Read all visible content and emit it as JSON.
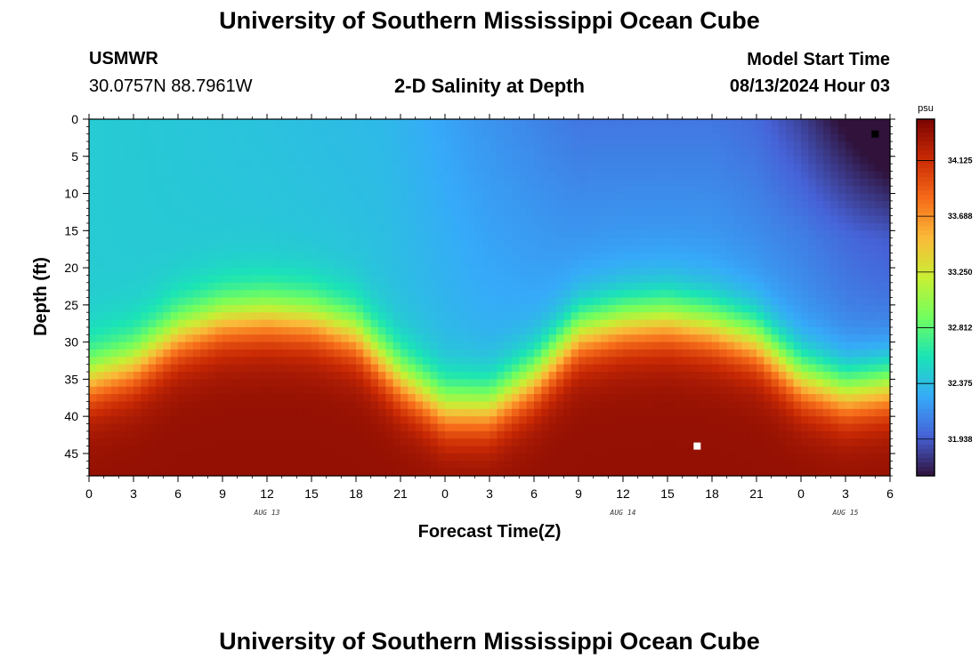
{
  "header": {
    "title": "University of Southern Mississippi Ocean Cube",
    "footer_title": "University of Southern Mississippi Ocean Cube",
    "station_name": "USMWR",
    "station_coords": "30.0757N  88.7961W",
    "plot_title": "2-D Salinity at Depth",
    "model_start_label": "Model Start Time",
    "model_start_value": "08/13/2024 Hour 03"
  },
  "chart_data": {
    "type": "heatmap",
    "title": "2-D Salinity at Depth",
    "xlabel": "Forecast Time(Z)",
    "ylabel": "Depth (ft)",
    "x_ticks": [
      "0",
      "3",
      "6",
      "9",
      "12",
      "15",
      "18",
      "21",
      "0",
      "3",
      "6",
      "9",
      "12",
      "15",
      "18",
      "21",
      "0",
      "3",
      "6"
    ],
    "x_range_hours": [
      0,
      54
    ],
    "date_labels": [
      {
        "text": "AUG 13",
        "hour": 12
      },
      {
        "text": "AUG 14",
        "hour": 36
      },
      {
        "text": "AUG 15",
        "hour": 51
      }
    ],
    "y_ticks": [
      0,
      5,
      10,
      15,
      20,
      25,
      30,
      35,
      40,
      45
    ],
    "y_range": [
      0,
      48
    ],
    "y_reversed": true,
    "colorbar": {
      "unit": "psu",
      "ticks": [
        34.125,
        33.688,
        33.25,
        32.812,
        32.375,
        31.938
      ],
      "tick_labels": [
        "34.125",
        "33.688",
        "33.250",
        "32.812",
        "32.375",
        "31.938"
      ],
      "range": [
        31.65,
        34.45
      ]
    },
    "color_scale": [
      "#30123b",
      "#4662d7",
      "#36aaf9",
      "#1ae4b6",
      "#72fe5e",
      "#c8ef34",
      "#faba39",
      "#f66b19",
      "#ca2a04",
      "#7a0403"
    ],
    "markers": [
      {
        "hour": 53,
        "depth": 2,
        "color": "#000000"
      },
      {
        "hour": 41,
        "depth": 44,
        "color": "#ffffff"
      }
    ],
    "interface_depth_ft": [
      {
        "hour": 0,
        "depth": 35
      },
      {
        "hour": 3,
        "depth": 33
      },
      {
        "hour": 6,
        "depth": 29
      },
      {
        "hour": 9,
        "depth": 27
      },
      {
        "hour": 12,
        "depth": 26.5
      },
      {
        "hour": 15,
        "depth": 27
      },
      {
        "hour": 18,
        "depth": 29
      },
      {
        "hour": 21,
        "depth": 35
      },
      {
        "hour": 24,
        "depth": 39
      },
      {
        "hour": 27,
        "depth": 39
      },
      {
        "hour": 30,
        "depth": 35
      },
      {
        "hour": 33,
        "depth": 29
      },
      {
        "hour": 36,
        "depth": 27.5
      },
      {
        "hour": 39,
        "depth": 27
      },
      {
        "hour": 42,
        "depth": 28
      },
      {
        "hour": 45,
        "depth": 30
      },
      {
        "hour": 48,
        "depth": 35
      },
      {
        "hour": 51,
        "depth": 37
      },
      {
        "hour": 54,
        "depth": 36
      }
    ],
    "surface_salinity_psu": [
      {
        "hour": 0,
        "value": 32.45
      },
      {
        "hour": 12,
        "value": 32.4
      },
      {
        "hour": 20,
        "value": 32.35
      },
      {
        "hour": 26,
        "value": 32.2
      },
      {
        "hour": 33,
        "value": 32.05
      },
      {
        "hour": 42,
        "value": 32.05
      },
      {
        "hour": 48,
        "value": 31.95
      },
      {
        "hour": 52,
        "value": 31.8
      },
      {
        "hour": 54,
        "value": 31.75
      }
    ],
    "bottom_salinity_psu": 34.35
  }
}
